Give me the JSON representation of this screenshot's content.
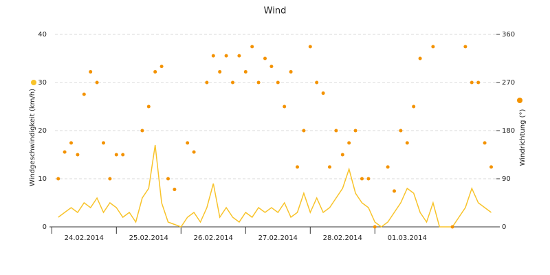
{
  "chart_data": {
    "type": "line",
    "title": "Wind",
    "y_label": "Windgeschwindigkeit (km/h)",
    "y2_label": "Windrichtung (°)",
    "xlim": [
      0.05,
      6.88
    ],
    "xticks": [
      {
        "value": 0,
        "label": "24.02.2014"
      },
      {
        "value": 1,
        "label": "25.02.2014"
      },
      {
        "value": 2,
        "label": "26.02.2014"
      },
      {
        "value": 3,
        "label": "27.02.2014"
      },
      {
        "value": 4,
        "label": "28.02.2014"
      },
      {
        "value": 5,
        "label": "01.03.2014"
      }
    ],
    "ylim": [
      0,
      40
    ],
    "yticks": [
      0,
      10,
      20,
      30,
      40
    ],
    "y2lim": [
      0,
      360
    ],
    "y2ticks": [
      0,
      90,
      180,
      270,
      360
    ],
    "grid": true,
    "x": [
      0.1,
      0.2,
      0.3,
      0.4,
      0.5,
      0.6,
      0.7,
      0.8,
      0.9,
      1.0,
      1.1,
      1.2,
      1.3,
      1.4,
      1.5,
      1.6,
      1.7,
      1.8,
      1.9,
      2.0,
      2.1,
      2.2,
      2.3,
      2.4,
      2.5,
      2.6,
      2.7,
      2.8,
      2.9,
      3.0,
      3.1,
      3.2,
      3.3,
      3.4,
      3.5,
      3.6,
      3.7,
      3.8,
      3.9,
      4.0,
      4.1,
      4.2,
      4.3,
      4.4,
      4.5,
      4.6,
      4.7,
      4.8,
      4.9,
      5.0,
      5.1,
      5.2,
      5.3,
      5.4,
      5.5,
      5.6,
      5.7,
      5.8,
      5.9,
      6.0,
      6.1,
      6.2,
      6.3,
      6.4,
      6.5,
      6.6,
      6.7,
      6.8
    ],
    "series": [
      {
        "name": "Windgeschwindigkeit",
        "color": "#f8c32a",
        "style": "line",
        "values": [
          2,
          3,
          4,
          3,
          5,
          4,
          6,
          3,
          5,
          4,
          2,
          3,
          1,
          6,
          8,
          17,
          5,
          1,
          0.5,
          0,
          2,
          3,
          1,
          4,
          9,
          2,
          4,
          2,
          1,
          3,
          2,
          4,
          3,
          4,
          3,
          5,
          2,
          3,
          7,
          3,
          6,
          3,
          4,
          6,
          8,
          12,
          7,
          5,
          4,
          1,
          0,
          1,
          3,
          5,
          8,
          7,
          3,
          1,
          5,
          0,
          0,
          0,
          2,
          4,
          8,
          5,
          4,
          3
        ]
      },
      {
        "name": "Windrichtung",
        "color": "#f39200",
        "style": "dots",
        "axis": "y2",
        "values": [
          90,
          140,
          157,
          135,
          248,
          290,
          270,
          157,
          90,
          135,
          135,
          null,
          null,
          180,
          225,
          290,
          300,
          90,
          70,
          null,
          157,
          140,
          null,
          270,
          320,
          290,
          320,
          270,
          320,
          290,
          337,
          270,
          315,
          300,
          270,
          225,
          290,
          112,
          180,
          337,
          270,
          250,
          112,
          180,
          135,
          157,
          180,
          90,
          90,
          0,
          null,
          112,
          67,
          180,
          157,
          225,
          315,
          null,
          337,
          null,
          null,
          0,
          null,
          337,
          270,
          270,
          157,
          112
        ]
      }
    ]
  }
}
